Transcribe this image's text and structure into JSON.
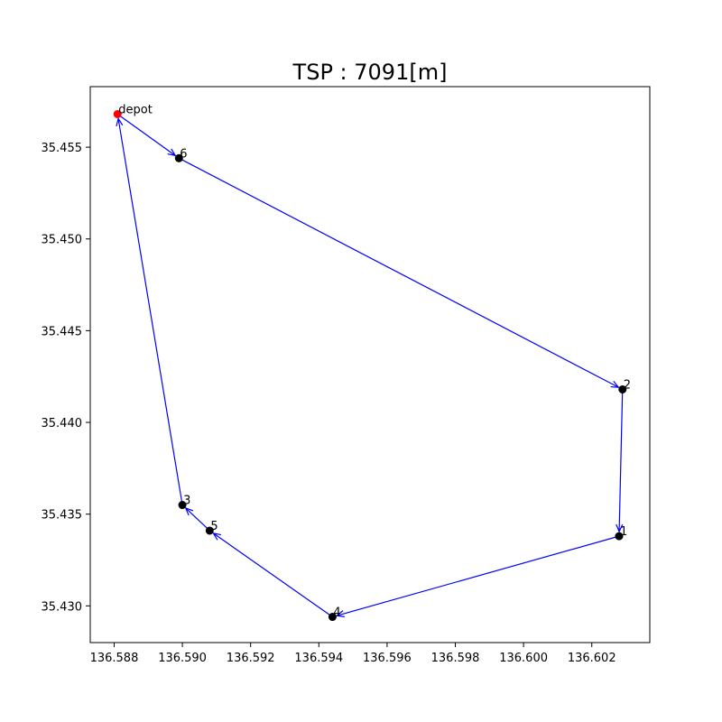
{
  "chart_data": {
    "type": "scatter",
    "title": "TSP : 7091[m]",
    "xlabel": "",
    "ylabel": "",
    "xlim": [
      136.5873,
      136.6037
    ],
    "ylim": [
      35.428,
      35.4583
    ],
    "xticks": [
      136.588,
      136.59,
      136.592,
      136.594,
      136.596,
      136.598,
      136.6,
      136.602
    ],
    "xtick_labels": [
      "136.588",
      "136.590",
      "136.592",
      "136.594",
      "136.596",
      "136.598",
      "136.600",
      "136.602"
    ],
    "yticks": [
      35.43,
      35.435,
      35.44,
      35.445,
      35.45,
      35.455
    ],
    "ytick_labels": [
      "35.430",
      "35.435",
      "35.440",
      "35.445",
      "35.450",
      "35.455"
    ],
    "grid": false,
    "points": [
      {
        "label": "depot",
        "x": 136.5881,
        "y": 35.4568,
        "color": "#ff0000"
      },
      {
        "label": "6",
        "x": 136.5899,
        "y": 35.4544,
        "color": "#000000"
      },
      {
        "label": "2",
        "x": 136.6029,
        "y": 35.4418,
        "color": "#000000"
      },
      {
        "label": "1",
        "x": 136.6028,
        "y": 35.4338,
        "color": "#000000"
      },
      {
        "label": "4",
        "x": 136.5944,
        "y": 35.4294,
        "color": "#000000"
      },
      {
        "label": "5",
        "x": 136.5908,
        "y": 35.4341,
        "color": "#000000"
      },
      {
        "label": "3",
        "x": 136.59,
        "y": 35.4355,
        "color": "#000000"
      }
    ],
    "route": [
      "depot",
      "6",
      "2",
      "1",
      "4",
      "5",
      "3",
      "depot"
    ],
    "route_color": "#0000ff"
  }
}
